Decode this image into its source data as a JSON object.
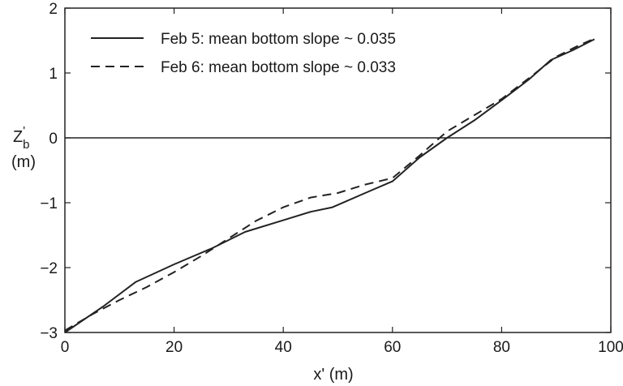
{
  "chart_data": {
    "type": "line",
    "xlabel": "x' (m)",
    "ylabel": {
      "main": "Z",
      "sup": "'",
      "sub": "b",
      "unit": "(m)"
    },
    "xlim": [
      0,
      100
    ],
    "ylim": [
      -3,
      2
    ],
    "xticks": [
      0,
      20,
      40,
      60,
      80,
      100
    ],
    "yticks": [
      -3,
      -2,
      -1,
      0,
      1,
      2
    ],
    "xtick_labels": [
      "0",
      "20",
      "40",
      "60",
      "80",
      "100"
    ],
    "ytick_labels": [
      "−3",
      "−2",
      "−1",
      "0",
      "1",
      "2"
    ],
    "reference_line_y": 0,
    "grid": false,
    "legend_position": "top-left",
    "series": [
      {
        "name": "Feb 5: mean bottom slope ~ 0.035",
        "style": "solid",
        "color": "#222222",
        "x": [
          0,
          7,
          13,
          20,
          27,
          33,
          40,
          45,
          49,
          55,
          60,
          65,
          70,
          75,
          80,
          85,
          89,
          93,
          97
        ],
        "y": [
          -3.0,
          -2.6,
          -2.22,
          -1.95,
          -1.7,
          -1.45,
          -1.27,
          -1.14,
          -1.07,
          -0.85,
          -0.67,
          -0.3,
          0.0,
          0.27,
          0.58,
          0.9,
          1.2,
          1.35,
          1.52
        ]
      },
      {
        "name": "Feb 6: mean bottom slope ~ 0.033",
        "style": "dashed",
        "color": "#222222",
        "x": [
          0,
          5,
          10,
          15,
          20,
          25,
          30,
          35,
          40,
          45,
          50,
          55,
          60,
          65,
          70,
          75,
          80,
          85,
          90,
          94,
          97
        ],
        "y": [
          -2.97,
          -2.72,
          -2.5,
          -2.3,
          -2.07,
          -1.82,
          -1.55,
          -1.28,
          -1.07,
          -0.92,
          -0.85,
          -0.72,
          -0.62,
          -0.27,
          0.1,
          0.35,
          0.6,
          0.92,
          1.25,
          1.42,
          1.53
        ]
      }
    ]
  }
}
